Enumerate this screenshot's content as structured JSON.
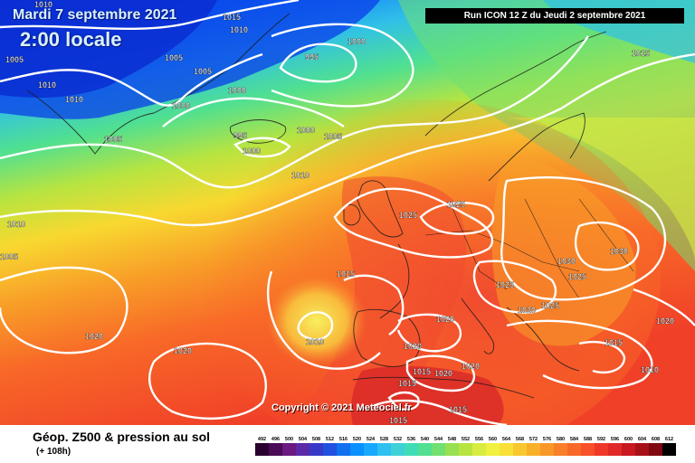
{
  "header": {
    "date": "Mardi 7 septembre 2021",
    "time": "2:00 locale",
    "run": "Run ICON 12 Z du Jeudi 2 septembre 2021"
  },
  "copyright": "Copyright © 2021 Meteociel.fr",
  "footer": {
    "title": "Géop. Z500 & pression au sol",
    "subtitle": "(+ 108h)"
  },
  "legend": {
    "values": [
      "492",
      "496",
      "500",
      "504",
      "508",
      "512",
      "516",
      "520",
      "524",
      "528",
      "532",
      "536",
      "540",
      "544",
      "548",
      "552",
      "556",
      "560",
      "564",
      "568",
      "572",
      "576",
      "580",
      "584",
      "588",
      "592",
      "596",
      "600",
      "604",
      "608",
      "612"
    ],
    "colors": [
      "#2a0030",
      "#4a0a55",
      "#6a1a80",
      "#5a2aa8",
      "#3838c8",
      "#2050e0",
      "#1070f0",
      "#0a90ff",
      "#18a8ff",
      "#30c0f0",
      "#40d0d8",
      "#40dcb8",
      "#50e090",
      "#70e070",
      "#98e050",
      "#b8e440",
      "#d8ec40",
      "#f0f040",
      "#f8e038",
      "#f8c830",
      "#f8b028",
      "#f89828",
      "#f88028",
      "#f86828",
      "#f85028",
      "#f03828",
      "#e02828",
      "#c81820",
      "#a81018",
      "#800810",
      "#000000"
    ]
  },
  "isobars": [
    {
      "text": "1010"
    },
    {
      "text": "1015"
    },
    {
      "text": "1010"
    },
    {
      "text": "1000"
    },
    {
      "text": "995"
    },
    {
      "text": "1005"
    },
    {
      "text": "1005"
    },
    {
      "text": "1010"
    },
    {
      "text": "1005"
    },
    {
      "text": "1000"
    },
    {
      "text": "1010"
    },
    {
      "text": "1000"
    },
    {
      "text": "1015"
    },
    {
      "text": "995"
    },
    {
      "text": "1000"
    },
    {
      "text": "1000"
    },
    {
      "text": "1005"
    },
    {
      "text": "1005"
    },
    {
      "text": "1010"
    },
    {
      "text": "1025"
    },
    {
      "text": "1025"
    },
    {
      "text": "1010"
    },
    {
      "text": "1030"
    },
    {
      "text": "1030"
    },
    {
      "text": "1025"
    },
    {
      "text": "1015"
    },
    {
      "text": "1025"
    },
    {
      "text": "1020"
    },
    {
      "text": "1025"
    },
    {
      "text": "1020"
    },
    {
      "text": "1020"
    },
    {
      "text": "1010"
    },
    {
      "text": "1015"
    },
    {
      "text": "1020"
    },
    {
      "text": "1020"
    },
    {
      "text": "1020"
    },
    {
      "text": "1015"
    },
    {
      "text": "1020"
    },
    {
      "text": "1010"
    },
    {
      "text": "1015"
    },
    {
      "text": "1020"
    },
    {
      "text": "1015"
    },
    {
      "text": "1015"
    },
    {
      "text": "1005"
    }
  ]
}
